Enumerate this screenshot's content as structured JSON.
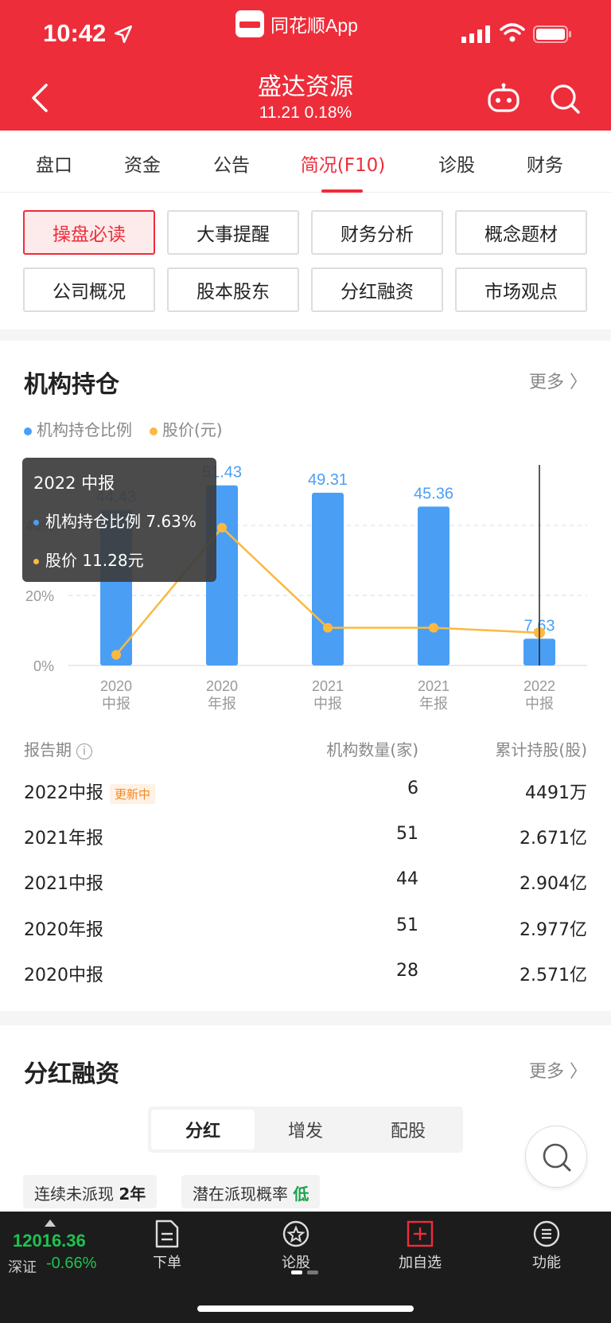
{
  "status": {
    "time": "10:42",
    "app_name": "同花顺App"
  },
  "header": {
    "title": "盛达资源",
    "price": "11.21",
    "change": "0.18%"
  },
  "tabs": [
    "盘口",
    "资金",
    "公告",
    "简况(F10)",
    "诊股",
    "财务"
  ],
  "grid_buttons": [
    "操盘必读",
    "大事提醒",
    "财务分析",
    "概念题材",
    "公司概况",
    "股本股东",
    "分红融资",
    "市场观点"
  ],
  "holdings": {
    "title": "机构持仓",
    "more": "更多",
    "legend": [
      "机构持仓比例",
      "股价(元)"
    ],
    "tooltip": {
      "title": "2022 中报",
      "ratio": "机构持仓比例 7.63%",
      "price": "股价 11.28元"
    },
    "columns": [
      "报告期",
      "机构数量(家)",
      "累计持股(股)"
    ],
    "rows": [
      {
        "period": "2022中报",
        "badge": "更新中",
        "count": "6",
        "shares": "4491万"
      },
      {
        "period": "2021年报",
        "badge": "",
        "count": "51",
        "shares": "2.671亿"
      },
      {
        "period": "2021中报",
        "badge": "",
        "count": "44",
        "shares": "2.904亿"
      },
      {
        "period": "2020年报",
        "badge": "",
        "count": "51",
        "shares": "2.977亿"
      },
      {
        "period": "2020中报",
        "badge": "",
        "count": "28",
        "shares": "2.571亿"
      }
    ]
  },
  "chart_data": {
    "type": "bar",
    "categories": [
      [
        "2020",
        "中报"
      ],
      [
        "2020",
        "年报"
      ],
      [
        "2021",
        "中报"
      ],
      [
        "2021",
        "年报"
      ],
      [
        "2022",
        "中报"
      ]
    ],
    "series": [
      {
        "name": "机构持仓比例",
        "values": [
          44.43,
          51.43,
          49.31,
          45.36,
          7.63
        ],
        "labels": [
          "44.43",
          "51.43",
          "49.31",
          "45.36",
          "7.63"
        ],
        "color": "#4a9ff5"
      },
      {
        "name": "股价(元)",
        "type": "line",
        "values": [
          9.4,
          20.2,
          11.7,
          11.7,
          11.28
        ],
        "color": "#fbb941"
      }
    ],
    "y_ticks": [
      "0%",
      "20%",
      "40%"
    ],
    "ylim": [
      0,
      52
    ],
    "grid": true
  },
  "dividend": {
    "title": "分红融资",
    "more": "更多",
    "segments": [
      "分红",
      "增发",
      "配股"
    ],
    "chips": [
      {
        "label": "连续未派现",
        "value": "2年"
      },
      {
        "label": "潜在派现概率",
        "value": "低"
      }
    ]
  },
  "bottom": {
    "index_value": "12016.36",
    "index_name": "深证",
    "index_change": "-0.66%",
    "nav": [
      "下单",
      "论股",
      "加自选",
      "功能"
    ]
  },
  "colors": {
    "brand_red": "#ee2d3a",
    "bar_blue": "#4a9ff5",
    "line_orange": "#fbb941",
    "down_green": "#1ec24f"
  }
}
